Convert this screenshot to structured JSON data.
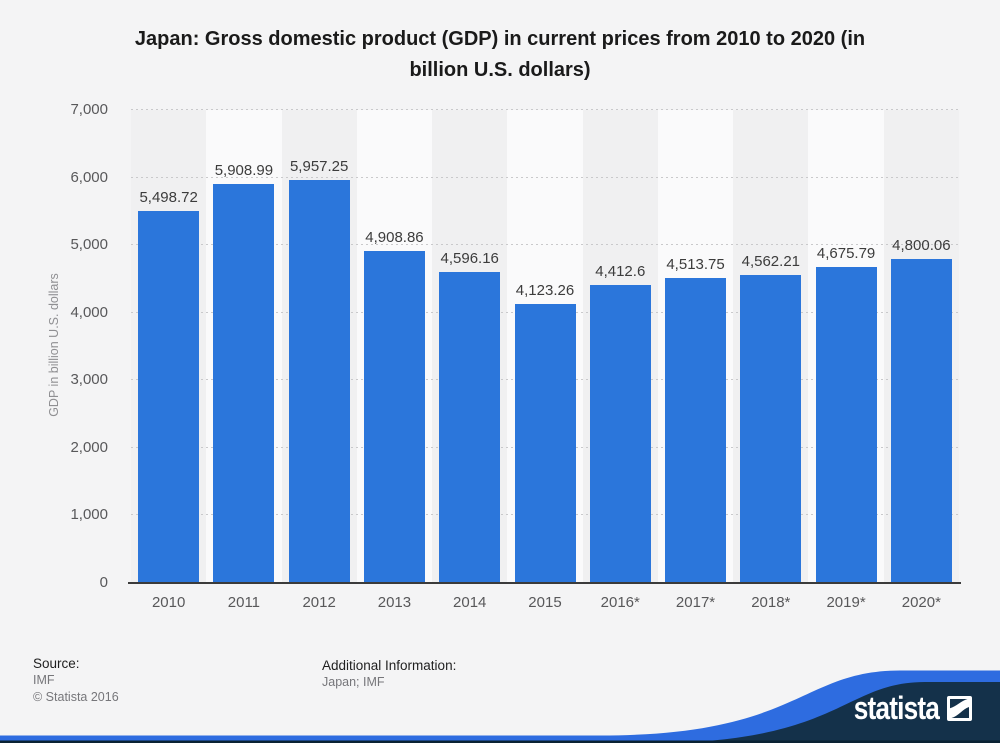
{
  "title": "Japan: Gross domestic product (GDP) in current prices from 2010 to 2020 (in billion U.S. dollars)",
  "title_lines": [
    "Japan: Gross domestic product (GDP) in current prices from 2010 to 2020 (in",
    "billion U.S. dollars)"
  ],
  "chart_data": {
    "type": "bar",
    "title": "Japan: Gross domestic product (GDP) in current prices from 2010 to 2020 (in billion U.S. dollars)",
    "categories": [
      "2010",
      "2011",
      "2012",
      "2013",
      "2014",
      "2015",
      "2016*",
      "2017*",
      "2018*",
      "2019*",
      "2020*"
    ],
    "values": [
      5498.72,
      5908.99,
      5957.25,
      4908.86,
      4596.16,
      4123.26,
      4412.6,
      4513.75,
      4562.21,
      4675.79,
      4800.06
    ],
    "value_labels": [
      "5,498.72",
      "5,908.99",
      "5,957.25",
      "4,908.86",
      "4,596.16",
      "4,123.26",
      "4,412.6",
      "4,513.75",
      "4,562.21",
      "4,675.79",
      "4,800.06"
    ],
    "xlabel": "",
    "ylabel": "GDP in billion U.S. dollars",
    "ylim": [
      0,
      7000
    ],
    "yticks": [
      0,
      1000,
      2000,
      3000,
      4000,
      5000,
      6000,
      7000
    ],
    "ytick_labels": [
      "0",
      "1,000",
      "2,000",
      "3,000",
      "4,000",
      "5,000",
      "6,000",
      "7,000"
    ],
    "grid": "horizontal-dotted",
    "legend": null,
    "bar_color": "#2b76db"
  },
  "footer": {
    "source_label": "Source:",
    "source_value": "IMF",
    "copyright": "© Statista 2016",
    "additional_label": "Additional Information:",
    "additional_value": "Japan; IMF"
  },
  "brand": {
    "logo_text": "statista",
    "navy": "#14314a",
    "wave_blue": "#2e6ce0",
    "bottom_line": "#0a2233"
  }
}
